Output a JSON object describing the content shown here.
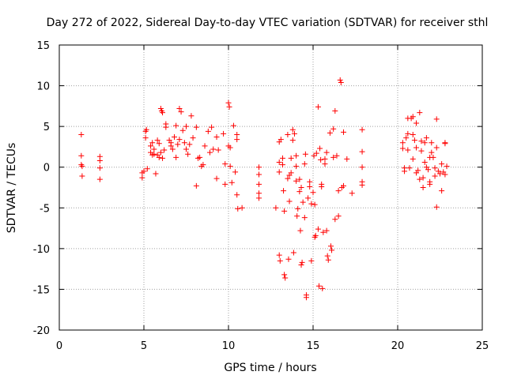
{
  "chart_data": {
    "type": "scatter",
    "title": "Day 272 of 2022, Sidereal Day-to-day VTEC variation (SDTVAR) for receiver sthl",
    "xlabel": "GPS time / hours",
    "ylabel": "SDTVAR / TECUs",
    "xlim": [
      0,
      25
    ],
    "ylim": [
      -20,
      15
    ],
    "xticks": [
      0,
      5,
      10,
      15,
      20,
      25
    ],
    "yticks": [
      -20,
      -15,
      -10,
      -5,
      0,
      5,
      10,
      15
    ],
    "grid": true,
    "marker": "plus",
    "color": "#ff0000",
    "series": [
      {
        "name": "SDTVAR",
        "points": [
          [
            1.3,
            4.0
          ],
          [
            1.3,
            1.4
          ],
          [
            1.3,
            0.3
          ],
          [
            1.35,
            0.1
          ],
          [
            1.35,
            -1.1
          ],
          [
            2.4,
            1.3
          ],
          [
            2.4,
            0.8
          ],
          [
            2.4,
            -0.1
          ],
          [
            2.4,
            -1.5
          ],
          [
            4.9,
            -0.7
          ],
          [
            4.9,
            -1.3
          ],
          [
            5.0,
            -0.5
          ],
          [
            5.1,
            4.4
          ],
          [
            5.1,
            3.6
          ],
          [
            5.15,
            4.6
          ],
          [
            5.2,
            -0.2
          ],
          [
            5.4,
            2.6
          ],
          [
            5.4,
            1.8
          ],
          [
            5.5,
            1.5
          ],
          [
            5.5,
            3.0
          ],
          [
            5.6,
            2.2
          ],
          [
            5.6,
            1.6
          ],
          [
            5.7,
            -0.8
          ],
          [
            5.8,
            3.3
          ],
          [
            5.8,
            1.5
          ],
          [
            5.9,
            2.9
          ],
          [
            5.9,
            1.2
          ],
          [
            6.0,
            1.8
          ],
          [
            6.0,
            7.2
          ],
          [
            6.05,
            6.9
          ],
          [
            6.1,
            6.7
          ],
          [
            6.1,
            1.1
          ],
          [
            6.2,
            2.1
          ],
          [
            6.3,
            5.3
          ],
          [
            6.3,
            4.9
          ],
          [
            6.5,
            3.3
          ],
          [
            6.6,
            3.0
          ],
          [
            6.6,
            2.6
          ],
          [
            6.7,
            2.2
          ],
          [
            6.8,
            3.7
          ],
          [
            6.9,
            1.2
          ],
          [
            6.9,
            5.1
          ],
          [
            7.0,
            2.8
          ],
          [
            7.1,
            3.4
          ],
          [
            7.1,
            7.2
          ],
          [
            7.2,
            6.8
          ],
          [
            7.3,
            4.5
          ],
          [
            7.4,
            3.0
          ],
          [
            7.5,
            5.0
          ],
          [
            7.5,
            2.2
          ],
          [
            7.6,
            1.6
          ],
          [
            7.7,
            2.8
          ],
          [
            7.8,
            6.3
          ],
          [
            7.9,
            3.6
          ],
          [
            8.1,
            4.9
          ],
          [
            8.1,
            -2.3
          ],
          [
            8.2,
            1.1
          ],
          [
            8.3,
            1.2
          ],
          [
            8.4,
            0.1
          ],
          [
            8.5,
            0.3
          ],
          [
            8.6,
            2.6
          ],
          [
            8.8,
            4.4
          ],
          [
            8.9,
            1.8
          ],
          [
            9.0,
            4.9
          ],
          [
            9.1,
            2.2
          ],
          [
            9.3,
            3.7
          ],
          [
            9.3,
            -1.4
          ],
          [
            9.4,
            2.1
          ],
          [
            9.7,
            4.1
          ],
          [
            9.8,
            0.4
          ],
          [
            9.8,
            -2.1
          ],
          [
            10.0,
            2.6
          ],
          [
            10.0,
            7.9
          ],
          [
            10.05,
            7.4
          ],
          [
            10.1,
            2.4
          ],
          [
            10.1,
            0.1
          ],
          [
            10.2,
            -1.9
          ],
          [
            10.3,
            5.1
          ],
          [
            10.4,
            -0.6
          ],
          [
            10.5,
            4.0
          ],
          [
            10.5,
            3.4
          ],
          [
            10.5,
            -3.4
          ],
          [
            10.55,
            -5.1
          ],
          [
            10.8,
            -5.0
          ],
          [
            11.8,
            0.0
          ],
          [
            11.8,
            -0.9
          ],
          [
            11.8,
            -2.1
          ],
          [
            11.8,
            -3.2
          ],
          [
            11.8,
            -3.8
          ],
          [
            12.8,
            -5.0
          ],
          [
            13.0,
            3.1
          ],
          [
            13.0,
            0.6
          ],
          [
            13.0,
            -0.6
          ],
          [
            13.0,
            -10.8
          ],
          [
            13.05,
            -11.5
          ],
          [
            13.1,
            3.4
          ],
          [
            13.2,
            1.1
          ],
          [
            13.2,
            0.3
          ],
          [
            13.25,
            -2.9
          ],
          [
            13.3,
            -5.4
          ],
          [
            13.3,
            -13.2
          ],
          [
            13.35,
            -13.6
          ],
          [
            13.5,
            4.0
          ],
          [
            13.5,
            -1.4
          ],
          [
            13.55,
            -11.3
          ],
          [
            13.6,
            -1.0
          ],
          [
            13.6,
            -4.2
          ],
          [
            13.7,
            1.1
          ],
          [
            13.7,
            -0.7
          ],
          [
            13.8,
            4.6
          ],
          [
            13.8,
            3.3
          ],
          [
            13.85,
            -10.5
          ],
          [
            13.9,
            4.1
          ],
          [
            14.0,
            1.4
          ],
          [
            14.0,
            0.1
          ],
          [
            14.0,
            -1.7
          ],
          [
            14.05,
            -6.0
          ],
          [
            14.1,
            -5.1
          ],
          [
            14.2,
            -1.5
          ],
          [
            14.2,
            -3.0
          ],
          [
            14.25,
            -7.8
          ],
          [
            14.3,
            -2.5
          ],
          [
            14.3,
            -12.0
          ],
          [
            14.35,
            -11.7
          ],
          [
            14.4,
            -4.3
          ],
          [
            14.5,
            -6.2
          ],
          [
            14.5,
            0.4
          ],
          [
            14.55,
            1.6
          ],
          [
            14.6,
            -15.7
          ],
          [
            14.6,
            -16.0
          ],
          [
            14.7,
            -3.8
          ],
          [
            14.8,
            -1.8
          ],
          [
            14.8,
            -2.4
          ],
          [
            14.9,
            -4.5
          ],
          [
            14.9,
            -11.5
          ],
          [
            15.0,
            -3.1
          ],
          [
            15.05,
            1.4
          ],
          [
            15.1,
            -4.6
          ],
          [
            15.1,
            -8.6
          ],
          [
            15.15,
            -8.4
          ],
          [
            15.2,
            1.7
          ],
          [
            15.3,
            7.4
          ],
          [
            15.3,
            -7.6
          ],
          [
            15.35,
            -14.6
          ],
          [
            15.4,
            2.3
          ],
          [
            15.45,
            0.9
          ],
          [
            15.5,
            -2.1
          ],
          [
            15.5,
            -2.4
          ],
          [
            15.55,
            -14.9
          ],
          [
            15.6,
            -8.0
          ],
          [
            15.7,
            1.0
          ],
          [
            15.7,
            0.4
          ],
          [
            15.8,
            1.8
          ],
          [
            15.8,
            -7.8
          ],
          [
            15.85,
            -10.9
          ],
          [
            15.9,
            -11.4
          ],
          [
            16.0,
            4.2
          ],
          [
            16.05,
            -9.7
          ],
          [
            16.1,
            -10.2
          ],
          [
            16.2,
            4.7
          ],
          [
            16.2,
            1.2
          ],
          [
            16.3,
            6.9
          ],
          [
            16.3,
            -6.4
          ],
          [
            16.4,
            1.4
          ],
          [
            16.5,
            -6.0
          ],
          [
            16.5,
            -2.9
          ],
          [
            16.6,
            10.7
          ],
          [
            16.65,
            10.4
          ],
          [
            16.7,
            -2.5
          ],
          [
            16.8,
            4.3
          ],
          [
            16.8,
            -2.3
          ],
          [
            17.0,
            1.0
          ],
          [
            17.3,
            -3.2
          ],
          [
            17.9,
            4.6
          ],
          [
            17.9,
            1.9
          ],
          [
            17.9,
            0.0
          ],
          [
            17.9,
            -1.8
          ],
          [
            17.9,
            -2.2
          ],
          [
            20.3,
            3.0
          ],
          [
            20.3,
            2.3
          ],
          [
            20.4,
            -0.1
          ],
          [
            20.4,
            -0.5
          ],
          [
            20.5,
            3.6
          ],
          [
            20.6,
            6.0
          ],
          [
            20.6,
            4.1
          ],
          [
            20.6,
            2.1
          ],
          [
            20.7,
            -0.1
          ],
          [
            20.8,
            6.0
          ],
          [
            20.9,
            6.2
          ],
          [
            20.9,
            4.0
          ],
          [
            20.9,
            1.0
          ],
          [
            21.0,
            3.3
          ],
          [
            21.1,
            5.4
          ],
          [
            21.1,
            2.4
          ],
          [
            21.1,
            -0.7
          ],
          [
            21.2,
            -0.4
          ],
          [
            21.3,
            -1.5
          ],
          [
            21.3,
            6.7
          ],
          [
            21.4,
            3.2
          ],
          [
            21.4,
            2.0
          ],
          [
            21.5,
            -1.3
          ],
          [
            21.5,
            -2.5
          ],
          [
            21.6,
            0.6
          ],
          [
            21.6,
            3.0
          ],
          [
            21.7,
            3.6
          ],
          [
            21.7,
            0.0
          ],
          [
            21.8,
            -0.3
          ],
          [
            21.9,
            1.2
          ],
          [
            21.9,
            -2.1
          ],
          [
            21.9,
            -1.8
          ],
          [
            22.0,
            3.0
          ],
          [
            22.0,
            1.8
          ],
          [
            22.1,
            1.2
          ],
          [
            22.2,
            -0.1
          ],
          [
            22.2,
            -1.1
          ],
          [
            22.3,
            5.9
          ],
          [
            22.3,
            2.4
          ],
          [
            22.3,
            -4.9
          ],
          [
            22.4,
            -0.5
          ],
          [
            22.5,
            -0.8
          ],
          [
            22.6,
            0.4
          ],
          [
            22.6,
            -2.9
          ],
          [
            22.7,
            -0.6
          ],
          [
            22.8,
            3.0
          ],
          [
            22.8,
            2.9
          ],
          [
            22.8,
            -0.9
          ],
          [
            22.9,
            0.1
          ]
        ]
      }
    ]
  }
}
